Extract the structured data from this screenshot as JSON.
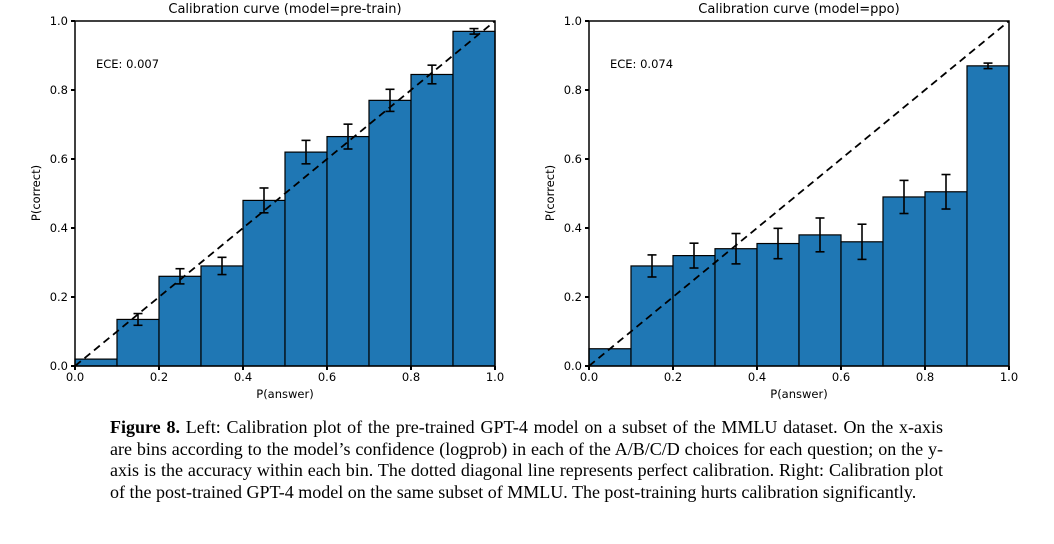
{
  "figure": {
    "background": "#ffffff",
    "caption": {
      "label": "Figure 8.",
      "text": "Left: Calibration plot of the pre-trained GPT-4 model on a subset of the MMLU dataset. On the x-axis are bins according to the model’s confidence (logprob) in each of the A/B/C/D choices for each question; on the y-axis is the accuracy within each bin. The dotted diagonal line represents perfect calibration. Right: Calibration plot of the post-trained GPT-4 model on the same subset of MMLU. The post-training hurts calibration significantly."
    }
  },
  "chart_data": [
    {
      "type": "bar",
      "title": "Calibration curve (model=pre-train)",
      "annotation": "ECE: 0.007",
      "xlabel": "P(answer)",
      "ylabel": "P(correct)",
      "xlim": [
        0.0,
        1.0
      ],
      "ylim": [
        0.0,
        1.0
      ],
      "xticks": [
        "0.0",
        "0.2",
        "0.4",
        "0.6",
        "0.8",
        "1.0"
      ],
      "yticks": [
        "0.0",
        "0.2",
        "0.4",
        "0.6",
        "0.8",
        "1.0"
      ],
      "bin_width": 0.1,
      "bin_left_edges": [
        0.0,
        0.1,
        0.2,
        0.3,
        0.4,
        0.5,
        0.6,
        0.7,
        0.8,
        0.9
      ],
      "values": [
        0.02,
        0.135,
        0.26,
        0.29,
        0.48,
        0.62,
        0.665,
        0.77,
        0.845,
        0.97
      ],
      "errors": [
        0,
        0.017,
        0.022,
        0.025,
        0.036,
        0.034,
        0.036,
        0.032,
        0.027,
        0.008
      ],
      "bar_color": "#1f77b4",
      "bar_edge_color": "#000000",
      "diagonal_line": "dashed y=x perfect calibration",
      "grid": false,
      "legend": false
    },
    {
      "type": "bar",
      "title": "Calibration curve (model=ppo)",
      "annotation": "ECE: 0.074",
      "xlabel": "P(answer)",
      "ylabel": "P(correct)",
      "xlim": [
        0.0,
        1.0
      ],
      "ylim": [
        0.0,
        1.0
      ],
      "xticks": [
        "0.0",
        "0.2",
        "0.4",
        "0.6",
        "0.8",
        "1.0"
      ],
      "yticks": [
        "0.0",
        "0.2",
        "0.4",
        "0.6",
        "0.8",
        "1.0"
      ],
      "bin_width": 0.1,
      "bin_left_edges": [
        0.0,
        0.1,
        0.2,
        0.3,
        0.4,
        0.5,
        0.6,
        0.7,
        0.8,
        0.9
      ],
      "values": [
        0.05,
        0.29,
        0.32,
        0.34,
        0.355,
        0.38,
        0.36,
        0.49,
        0.505,
        0.87
      ],
      "errors": [
        0,
        0.032,
        0.036,
        0.044,
        0.044,
        0.049,
        0.051,
        0.048,
        0.05,
        0.008
      ],
      "bar_color": "#1f77b4",
      "bar_edge_color": "#000000",
      "diagonal_line": "dashed y=x perfect calibration",
      "grid": false,
      "legend": false
    }
  ]
}
